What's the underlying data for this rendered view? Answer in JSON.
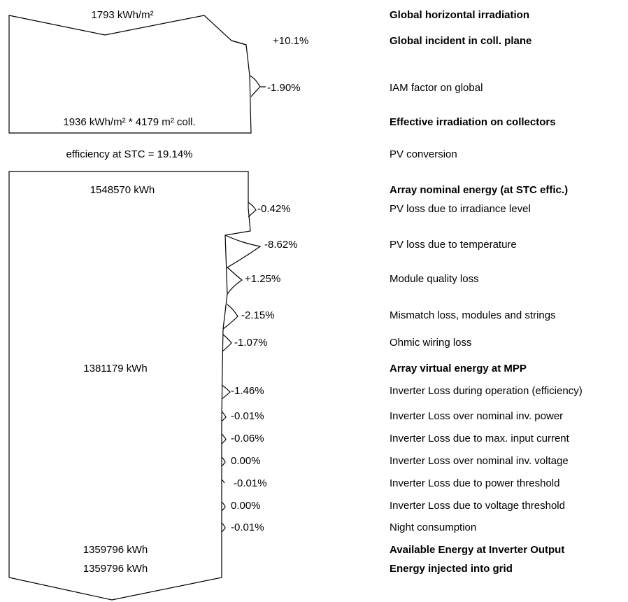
{
  "top_block": {
    "input_value": "1793 kWh/m²",
    "output_value": "1936 kWh/m² * 4179 m² coll."
  },
  "efficiency_text": "efficiency at STC = 19.14%",
  "bottom_block": {
    "nominal_value": "1548570 kWh",
    "virtual_value": "1381179 kWh",
    "available_value": "1359796 kWh",
    "injected_value": "1359796 kWh"
  },
  "steps": [
    {
      "label": "Global horizontal irradiation",
      "bold": true,
      "pct": ""
    },
    {
      "label": "Global incident in coll. plane",
      "bold": true,
      "pct": "+10.1%"
    },
    {
      "label": "IAM factor on global",
      "bold": false,
      "pct": "-1.90%"
    },
    {
      "label": "Effective irradiation on collectors",
      "bold": true,
      "pct": ""
    },
    {
      "label": "PV conversion",
      "bold": false,
      "pct": ""
    },
    {
      "label": "Array nominal energy (at STC effic.)",
      "bold": true,
      "pct": ""
    },
    {
      "label": "PV loss due to irradiance level",
      "bold": false,
      "pct": "-0.42%"
    },
    {
      "label": "PV loss due to temperature",
      "bold": false,
      "pct": "-8.62%"
    },
    {
      "label": "Module quality loss",
      "bold": false,
      "pct": "+1.25%"
    },
    {
      "label": "Mismatch loss, modules and strings",
      "bold": false,
      "pct": "-2.15%"
    },
    {
      "label": "Ohmic wiring loss",
      "bold": false,
      "pct": "-1.07%"
    },
    {
      "label": "Array virtual energy at MPP",
      "bold": true,
      "pct": ""
    },
    {
      "label": "Inverter Loss during operation (efficiency)",
      "bold": false,
      "pct": "-1.46%"
    },
    {
      "label": "Inverter Loss over nominal inv. power",
      "bold": false,
      "pct": "-0.01%"
    },
    {
      "label": "Inverter Loss due to max. input current",
      "bold": false,
      "pct": "-0.06%"
    },
    {
      "label": "Inverter Loss over nominal inv. voltage",
      "bold": false,
      "pct": "0.00%"
    },
    {
      "label": "Inverter Loss due to power threshold",
      "bold": false,
      "pct": "-0.01%"
    },
    {
      "label": "Inverter Loss due to voltage threshold",
      "bold": false,
      "pct": "0.00%"
    },
    {
      "label": "Night consumption",
      "bold": false,
      "pct": "-0.01%"
    },
    {
      "label": "Available Energy at Inverter Output",
      "bold": true,
      "pct": ""
    },
    {
      "label": "Energy injected into grid",
      "bold": true,
      "pct": ""
    }
  ]
}
